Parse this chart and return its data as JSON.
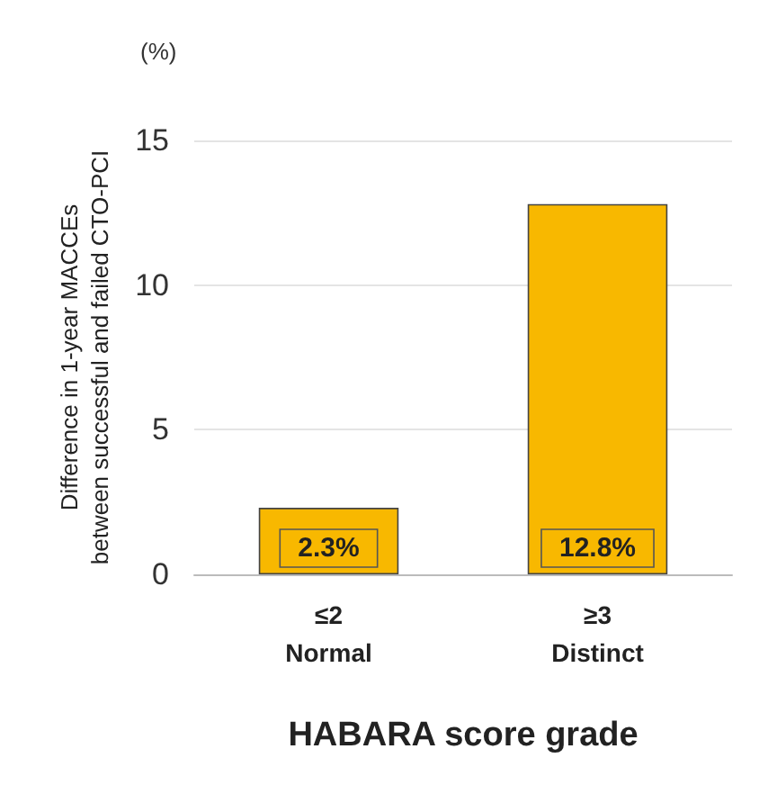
{
  "chart_data": {
    "type": "bar",
    "xlabel": "HABARA score grade",
    "ylabel": "Difference in 1-year MACCEs\nbetween successful and failed CTO-PCI",
    "categories": [
      "≤2\nNormal",
      "≥3\nDistinct"
    ],
    "values": [
      2.3,
      12.8
    ],
    "value_labels": [
      "2.3%",
      "12.8%"
    ],
    "color": "#f8b800",
    "ylim": [
      0,
      15
    ],
    "yticks": [
      0,
      5,
      10,
      15
    ],
    "grid": "y",
    "annotations": [
      "(%)"
    ]
  }
}
